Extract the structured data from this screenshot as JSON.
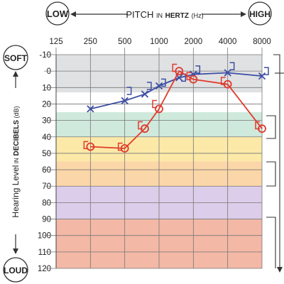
{
  "header": {
    "low": "LOW",
    "high": "HIGH",
    "pitch_word": "PITCH",
    "in_word": "IN",
    "hertz_word": "HERTZ",
    "hz_unit": "(Hz)"
  },
  "side": {
    "soft": "SOFT",
    "loud": "LOUD",
    "ylabel_prefix": "Hearing Level",
    "ylabel_in": "IN",
    "ylabel_unit_word": "DECIBELS",
    "ylabel_unit": "(dB)"
  },
  "chart_data": {
    "type": "line",
    "x_tick_labels": [
      "125",
      "250",
      "500",
      "1000",
      "2000",
      "4000",
      "8000"
    ],
    "x_values": [
      125,
      250,
      500,
      1000,
      2000,
      4000,
      8000
    ],
    "x_scale": "log",
    "y_tick_labels": [
      "-10",
      "0",
      "10",
      "20",
      "30",
      "40",
      "50",
      "60",
      "70",
      "80",
      "90",
      "100",
      "110",
      "120"
    ],
    "ylim": [
      -10,
      120
    ],
    "y_inverted": true,
    "grid": true,
    "bands": [
      {
        "from": -10,
        "to": 13,
        "color": "#e0e1e3"
      },
      {
        "from": 13,
        "to": 25,
        "color": "#ffffff"
      },
      {
        "from": 25,
        "to": 40,
        "color": "#cfe9dc"
      },
      {
        "from": 40,
        "to": 55,
        "color": "#fce9a8"
      },
      {
        "from": 55,
        "to": 70,
        "color": "#fbd6a8"
      },
      {
        "from": 70,
        "to": 90,
        "color": "#dccdea"
      },
      {
        "from": 90,
        "to": 120,
        "color": "#f3b8a6"
      }
    ],
    "series": [
      {
        "ear": "left",
        "marker": "x",
        "color": "#3d4fa3",
        "points": [
          [
            250,
            23
          ],
          [
            500,
            18
          ],
          [
            750,
            14
          ],
          [
            1000,
            9
          ],
          [
            1500,
            4
          ],
          [
            2000,
            2
          ],
          [
            4000,
            1
          ],
          [
            8000,
            3
          ]
        ],
        "bone": [
          [
            500,
            12
          ],
          [
            750,
            9
          ],
          [
            1000,
            7
          ],
          [
            1500,
            4
          ],
          [
            2000,
            -1
          ],
          [
            4000,
            -3
          ],
          [
            8000,
            0
          ]
        ]
      },
      {
        "ear": "right",
        "marker": "o",
        "color": "#e03a2d",
        "points": [
          [
            250,
            46
          ],
          [
            500,
            47
          ],
          [
            750,
            35
          ],
          [
            1000,
            23
          ],
          [
            1500,
            0
          ],
          [
            2000,
            5
          ],
          [
            4000,
            8
          ],
          [
            8000,
            35
          ]
        ],
        "bone": [
          [
            250,
            45
          ],
          [
            500,
            46
          ],
          [
            750,
            33
          ],
          [
            1000,
            20
          ],
          [
            1500,
            -2
          ],
          [
            2000,
            3
          ],
          [
            4000,
            6
          ],
          [
            8000,
            33
          ]
        ]
      }
    ]
  }
}
